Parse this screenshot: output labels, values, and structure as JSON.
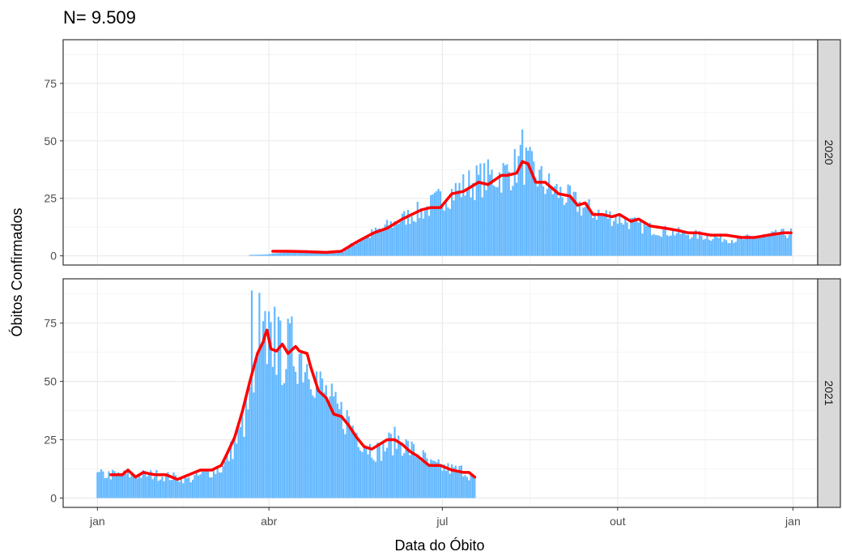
{
  "chart_data": {
    "type": "bar",
    "title": "N= 9.509",
    "xlabel": "Data do Óbito",
    "ylabel": "Óbitos Confirmados",
    "x_ticks": [
      {
        "label": "jan",
        "day": 0
      },
      {
        "label": "abr",
        "day": 90
      },
      {
        "label": "jul",
        "day": 181
      },
      {
        "label": "out",
        "day": 273
      },
      {
        "label": "jan",
        "day": 365
      }
    ],
    "xlim_days": [
      -18,
      378
    ],
    "y_ticks": [
      0,
      25,
      50,
      75
    ],
    "ylim": [
      -4,
      94
    ],
    "grid": true,
    "colors": {
      "bars": "#63b8ff",
      "trend": "#ff0000",
      "strip": "#d9d9d9"
    },
    "panels": [
      {
        "strip": "2020",
        "bar_profile": [
          [
            80,
            0.4
          ],
          [
            89,
            0.6
          ],
          [
            92,
            1
          ],
          [
            100,
            1.5
          ],
          [
            110,
            1.3
          ],
          [
            120,
            1.2
          ],
          [
            128,
            2
          ],
          [
            136,
            6
          ],
          [
            145,
            10
          ],
          [
            155,
            14
          ],
          [
            165,
            18
          ],
          [
            172,
            20
          ],
          [
            182,
            26
          ],
          [
            190,
            29
          ],
          [
            200,
            33
          ],
          [
            210,
            35
          ],
          [
            215,
            36
          ],
          [
            220,
            39
          ],
          [
            223,
            41
          ],
          [
            227,
            38
          ],
          [
            235,
            31
          ],
          [
            245,
            26
          ],
          [
            255,
            21
          ],
          [
            265,
            18
          ],
          [
            275,
            16
          ],
          [
            285,
            13
          ],
          [
            295,
            11
          ],
          [
            305,
            10
          ],
          [
            315,
            9
          ],
          [
            325,
            8
          ],
          [
            335,
            7
          ],
          [
            345,
            8
          ],
          [
            355,
            9
          ],
          [
            364,
            10
          ]
        ],
        "peaks": [
          {
            "day": 223,
            "value": 55
          }
        ],
        "trend": [
          [
            92,
            2
          ],
          [
            100,
            2
          ],
          [
            110,
            1.8
          ],
          [
            120,
            1.5
          ],
          [
            128,
            2
          ],
          [
            136,
            6
          ],
          [
            145,
            10
          ],
          [
            152,
            12
          ],
          [
            160,
            16
          ],
          [
            165,
            18
          ],
          [
            170,
            20
          ],
          [
            175,
            21
          ],
          [
            180,
            21
          ],
          [
            186,
            27
          ],
          [
            192,
            28
          ],
          [
            200,
            32
          ],
          [
            205,
            31
          ],
          [
            212,
            35
          ],
          [
            215,
            35
          ],
          [
            220,
            36
          ],
          [
            223,
            41
          ],
          [
            226,
            40
          ],
          [
            230,
            32
          ],
          [
            235,
            32
          ],
          [
            242,
            27
          ],
          [
            248,
            26
          ],
          [
            252,
            22
          ],
          [
            256,
            23
          ],
          [
            260,
            18
          ],
          [
            265,
            18
          ],
          [
            270,
            17
          ],
          [
            274,
            18
          ],
          [
            280,
            15
          ],
          [
            284,
            16
          ],
          [
            290,
            13
          ],
          [
            298,
            12
          ],
          [
            305,
            11
          ],
          [
            310,
            10
          ],
          [
            315,
            10
          ],
          [
            322,
            9
          ],
          [
            330,
            9
          ],
          [
            338,
            8
          ],
          [
            345,
            8
          ],
          [
            352,
            9
          ],
          [
            360,
            10
          ],
          [
            364,
            10
          ]
        ]
      },
      {
        "strip": "2021",
        "bar_profile": [
          [
            0,
            10
          ],
          [
            20,
            10
          ],
          [
            30,
            10
          ],
          [
            40,
            9
          ],
          [
            48,
            8
          ],
          [
            55,
            10
          ],
          [
            62,
            12
          ],
          [
            66,
            13
          ],
          [
            70,
            20
          ],
          [
            74,
            26
          ],
          [
            78,
            35
          ],
          [
            82,
            47
          ],
          [
            86,
            58
          ],
          [
            88,
            68
          ],
          [
            92,
            68
          ],
          [
            96,
            62
          ],
          [
            100,
            63
          ],
          [
            105,
            64
          ],
          [
            110,
            58
          ],
          [
            112,
            60
          ],
          [
            116,
            48
          ],
          [
            120,
            44
          ],
          [
            125,
            37
          ],
          [
            130,
            35
          ],
          [
            136,
            28
          ],
          [
            142,
            22
          ],
          [
            148,
            20
          ],
          [
            154,
            24
          ],
          [
            158,
            25
          ],
          [
            164,
            21
          ],
          [
            170,
            18
          ],
          [
            175,
            14
          ],
          [
            182,
            13
          ],
          [
            188,
            12
          ],
          [
            192,
            12
          ],
          [
            195,
            10
          ],
          [
            198,
            8
          ]
        ],
        "peaks": [
          {
            "day": 81,
            "value": 89
          },
          {
            "day": 85,
            "value": 88
          },
          {
            "day": 90,
            "value": 80
          },
          {
            "day": 93,
            "value": 82
          }
        ],
        "trend": [
          [
            7,
            10
          ],
          [
            13,
            10
          ],
          [
            16,
            12
          ],
          [
            20,
            9
          ],
          [
            24,
            11
          ],
          [
            30,
            10
          ],
          [
            36,
            10
          ],
          [
            42,
            8
          ],
          [
            48,
            10
          ],
          [
            54,
            12
          ],
          [
            60,
            12
          ],
          [
            65,
            14
          ],
          [
            68,
            19
          ],
          [
            72,
            26
          ],
          [
            76,
            37
          ],
          [
            80,
            50
          ],
          [
            84,
            62
          ],
          [
            87,
            67
          ],
          [
            88,
            70
          ],
          [
            89,
            72
          ],
          [
            91,
            64
          ],
          [
            94,
            63
          ],
          [
            97,
            66
          ],
          [
            100,
            62
          ],
          [
            104,
            65
          ],
          [
            106,
            63
          ],
          [
            110,
            62
          ],
          [
            112,
            56
          ],
          [
            116,
            46
          ],
          [
            120,
            43
          ],
          [
            124,
            36
          ],
          [
            128,
            35
          ],
          [
            132,
            31
          ],
          [
            136,
            26
          ],
          [
            140,
            22
          ],
          [
            144,
            21
          ],
          [
            148,
            23
          ],
          [
            152,
            25
          ],
          [
            156,
            25
          ],
          [
            160,
            23
          ],
          [
            164,
            20
          ],
          [
            168,
            18
          ],
          [
            174,
            14
          ],
          [
            180,
            14
          ],
          [
            186,
            12
          ],
          [
            192,
            11
          ],
          [
            195,
            11
          ],
          [
            198,
            9
          ]
        ]
      }
    ]
  }
}
